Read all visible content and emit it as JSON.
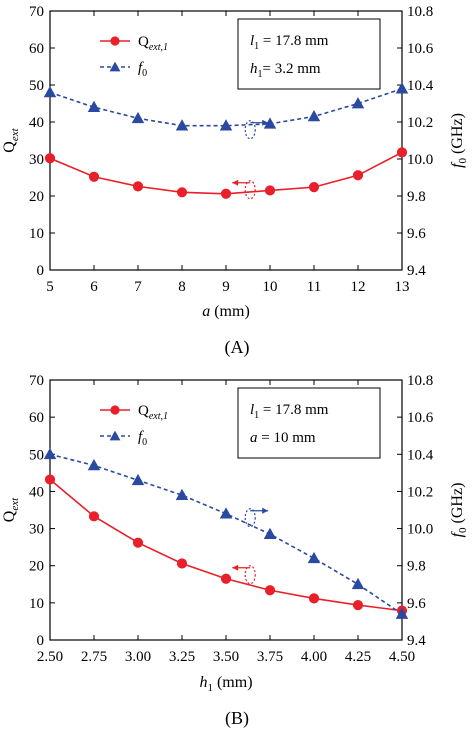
{
  "chart_data": [
    {
      "type": "line",
      "panel_label": "(A)",
      "x": [
        5,
        6,
        7,
        8,
        9,
        10,
        11,
        12,
        13
      ],
      "xlabel": {
        "italic": "a",
        "rest": " (mm)"
      },
      "xlim": [
        5,
        13
      ],
      "x_ticks": [
        "5",
        "6",
        "7",
        "8",
        "9",
        "10",
        "11",
        "12",
        "13"
      ],
      "ylabel_left": {
        "main": "Q",
        "sub": "ext"
      },
      "ylim_left": [
        0,
        70
      ],
      "y_ticks_left": [
        "0",
        "10",
        "20",
        "30",
        "40",
        "50",
        "60",
        "70"
      ],
      "ylabel_right": {
        "italic": "f",
        "sub": "0",
        "rest": " (GHz)"
      },
      "ylim_right": [
        9.4,
        10.8
      ],
      "y_ticks_right": [
        "9.4",
        "9.6",
        "9.8",
        "10.0",
        "10.2",
        "10.4",
        "10.6",
        "10.8"
      ],
      "series": [
        {
          "name": "Qext,1",
          "axis": "left",
          "color": "#e8202a",
          "line": "solid",
          "marker": "circle",
          "values": [
            30.2,
            25.2,
            22.6,
            21.0,
            20.6,
            21.5,
            22.4,
            25.6,
            31.8
          ]
        },
        {
          "name": "f0",
          "axis": "right",
          "color": "#2a4aa0",
          "line": "dashed",
          "marker": "triangle",
          "values": [
            10.36,
            10.28,
            10.22,
            10.18,
            10.18,
            10.19,
            10.23,
            10.3,
            10.38
          ]
        }
      ],
      "legend_labels": {
        "q_main": "Q",
        "q_sub": "ext,1",
        "f_main": "f",
        "f_sub": "0"
      },
      "params": {
        "line1": {
          "main": "l",
          "sub": "1",
          "rest": " = 17.8 mm"
        },
        "line2": {
          "main": "h",
          "sub": "1",
          "rest": "= 3.2 mm"
        }
      },
      "grid": false
    },
    {
      "type": "line",
      "panel_label": "(B)",
      "x": [
        2.5,
        2.75,
        3.0,
        3.25,
        3.5,
        3.75,
        4.0,
        4.25,
        4.5
      ],
      "xlabel": {
        "italic": "h",
        "sub": "1",
        "rest": " (mm)"
      },
      "xlim": [
        2.5,
        4.5
      ],
      "x_ticks": [
        "2.50",
        "2.75",
        "3.00",
        "3.25",
        "3.50",
        "3.75",
        "4.00",
        "4.25",
        "4.50"
      ],
      "ylabel_left": {
        "main": "Q",
        "sub": "ext"
      },
      "ylim_left": [
        0,
        70
      ],
      "y_ticks_left": [
        "0",
        "10",
        "20",
        "30",
        "40",
        "50",
        "60",
        "70"
      ],
      "ylabel_right": {
        "italic": "f",
        "sub": "0",
        "rest": " (GHz)"
      },
      "ylim_right": [
        9.4,
        10.8
      ],
      "y_ticks_right": [
        "9.4",
        "9.6",
        "9.8",
        "10.0",
        "10.2",
        "10.4",
        "10.6",
        "10.8"
      ],
      "series": [
        {
          "name": "Qext,1",
          "axis": "left",
          "color": "#e8202a",
          "line": "solid",
          "marker": "circle",
          "values": [
            43.2,
            33.3,
            26.2,
            20.6,
            16.5,
            13.4,
            11.2,
            9.4,
            7.9
          ]
        },
        {
          "name": "f0",
          "axis": "right",
          "color": "#2a4aa0",
          "line": "dashed",
          "marker": "triangle",
          "values": [
            10.4,
            10.34,
            10.26,
            10.18,
            10.08,
            9.97,
            9.84,
            9.7,
            9.54
          ]
        }
      ],
      "legend_labels": {
        "q_main": "Q",
        "q_sub": "ext,1",
        "f_main": "f",
        "f_sub": "0"
      },
      "params": {
        "line1": {
          "main": "l",
          "sub": "1",
          "rest": " = 17.8 mm"
        },
        "line2": {
          "main": "a",
          "sub": "",
          "rest": " = 10 mm"
        }
      },
      "grid": false
    }
  ]
}
